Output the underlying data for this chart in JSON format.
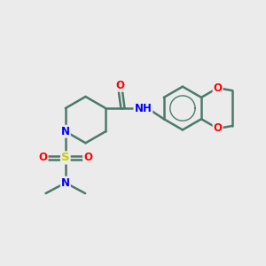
{
  "bg_color": "#ebebeb",
  "bond_color": "#4a7a6a",
  "bond_width": 1.8,
  "atom_colors": {
    "O": "#ff0000",
    "N": "#0000ff",
    "S": "#cccc00",
    "C": "#000000",
    "H": "#000000"
  },
  "font_size": 8.5
}
